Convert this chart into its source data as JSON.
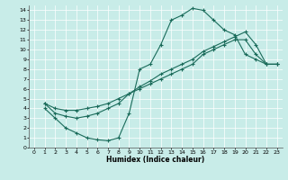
{
  "xlabel": "Humidex (Indice chaleur)",
  "background_color": "#c8ece8",
  "line_color": "#1a6b5a",
  "grid_color": "#ffffff",
  "xlim": [
    -0.5,
    23.5
  ],
  "ylim": [
    0,
    14.5
  ],
  "xticks": [
    0,
    1,
    2,
    3,
    4,
    5,
    6,
    7,
    8,
    9,
    10,
    11,
    12,
    13,
    14,
    15,
    16,
    17,
    18,
    19,
    20,
    21,
    22,
    23
  ],
  "yticks": [
    0,
    1,
    2,
    3,
    4,
    5,
    6,
    7,
    8,
    9,
    10,
    11,
    12,
    13,
    14
  ],
  "curve1_x": [
    1,
    2,
    3,
    4,
    5,
    6,
    7,
    8,
    9,
    10,
    11,
    12,
    13,
    14,
    15,
    16,
    17,
    18,
    19,
    20,
    21,
    22,
    23
  ],
  "curve1_y": [
    4.0,
    3.0,
    2.0,
    1.5,
    1.0,
    0.8,
    0.7,
    1.0,
    3.5,
    8.0,
    8.5,
    10.5,
    13.0,
    13.5,
    14.2,
    14.0,
    13.0,
    12.0,
    11.5,
    9.5,
    9.0,
    8.5,
    8.5
  ],
  "curve2_x": [
    1,
    2,
    3,
    4,
    5,
    6,
    7,
    8,
    9,
    10,
    11,
    12,
    13,
    14,
    15,
    16,
    17,
    18,
    19,
    20,
    21,
    22,
    23
  ],
  "curve2_y": [
    4.5,
    3.5,
    3.2,
    3.0,
    3.2,
    3.5,
    4.0,
    4.5,
    5.5,
    6.0,
    6.5,
    7.0,
    7.5,
    8.0,
    8.5,
    9.5,
    10.0,
    10.5,
    11.0,
    11.0,
    9.5,
    8.5,
    8.5
  ],
  "curve3_x": [
    1,
    2,
    3,
    4,
    5,
    6,
    7,
    8,
    9,
    10,
    11,
    12,
    13,
    14,
    15,
    16,
    17,
    18,
    19,
    20,
    21,
    22,
    23
  ],
  "curve3_y": [
    4.5,
    4.0,
    3.8,
    3.8,
    4.0,
    4.2,
    4.5,
    5.0,
    5.5,
    6.2,
    6.8,
    7.5,
    8.0,
    8.5,
    9.0,
    9.8,
    10.3,
    10.8,
    11.3,
    11.8,
    10.5,
    8.5,
    8.5
  ],
  "xlabel_fontsize": 5.5,
  "tick_fontsize": 4.5
}
